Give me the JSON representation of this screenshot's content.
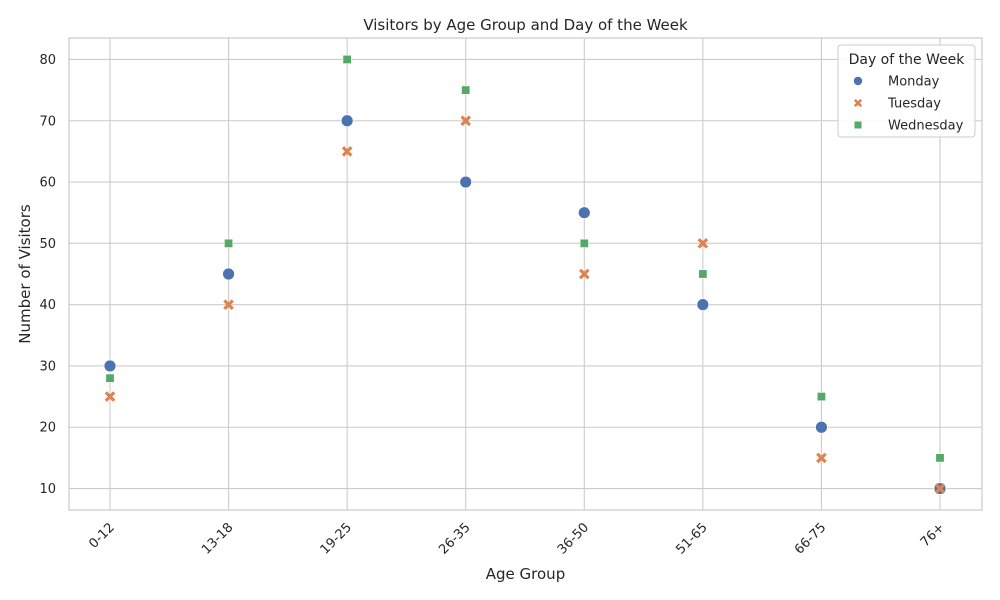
{
  "chart_data": {
    "type": "scatter",
    "title": "Visitors by Age Group and Day of the Week",
    "xlabel": "Age Group",
    "ylabel": "Number of Visitors",
    "categories": [
      "0-12",
      "13-18",
      "19-25",
      "26-35",
      "36-50",
      "51-65",
      "66-75",
      "76+"
    ],
    "ylim": [
      6.5,
      83.5
    ],
    "yticks": [
      10,
      20,
      30,
      40,
      50,
      60,
      70,
      80
    ],
    "grid": true,
    "legend": {
      "title": "Day of the Week",
      "placement": "top-right"
    },
    "series": [
      {
        "name": "Monday",
        "marker": "circle",
        "color": "#4c72b0",
        "values": [
          30,
          45,
          70,
          60,
          55,
          40,
          20,
          10
        ]
      },
      {
        "name": "Tuesday",
        "marker": "x",
        "color": "#dd8452",
        "values": [
          25,
          40,
          65,
          70,
          45,
          50,
          15,
          10
        ]
      },
      {
        "name": "Wednesday",
        "marker": "square",
        "color": "#55a868",
        "values": [
          28,
          50,
          80,
          75,
          50,
          45,
          25,
          15
        ]
      }
    ]
  }
}
